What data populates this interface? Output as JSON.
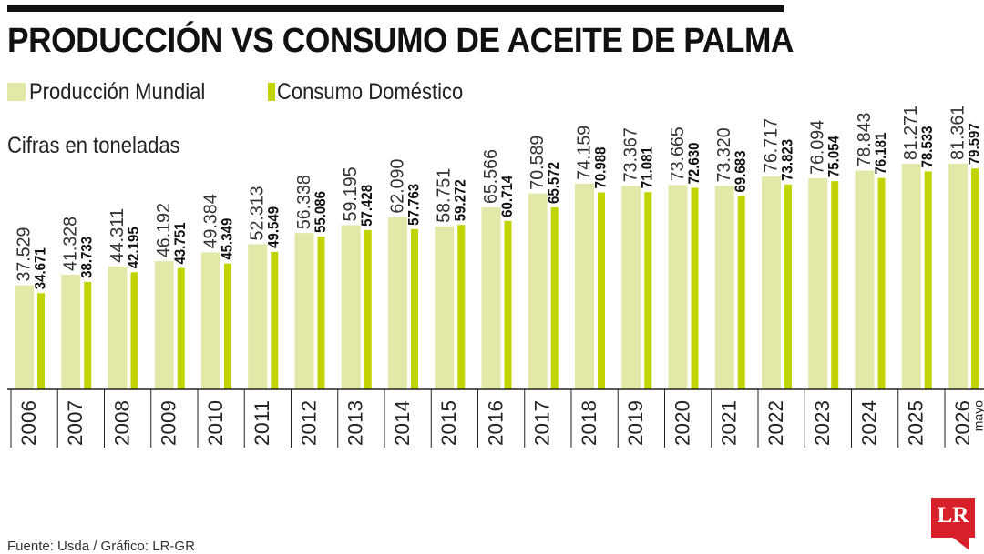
{
  "title": "PRODUCCIÓN VS CONSUMO DE ACEITE DE PALMA",
  "legend": {
    "production_label": "Producción Mundial",
    "consumption_label": "Consumo Doméstico"
  },
  "subtitle": "Cifras en toneladas",
  "source": "Fuente: Usda / Gráfico: LR-GR",
  "logo_text": "LR",
  "colors": {
    "production": "#e3e8a8",
    "consumption": "#c2d400",
    "title": "#111111",
    "logo": "#d8202a"
  },
  "chart_data": {
    "type": "bar",
    "categories": [
      "2006",
      "2007",
      "2008",
      "2009",
      "2010",
      "2011",
      "2012",
      "2013",
      "2014",
      "2015",
      "2016",
      "2017",
      "2018",
      "2019",
      "2020",
      "2021",
      "2022",
      "2023",
      "2024",
      "2025",
      "2026"
    ],
    "category_notes": {
      "2026": "mayo"
    },
    "series": [
      {
        "name": "Producción Mundial",
        "values": [
          37.529,
          41.328,
          44.311,
          46.192,
          49.384,
          52.313,
          56.338,
          59.195,
          62.09,
          58.751,
          65.566,
          70.589,
          74.159,
          73.367,
          73.665,
          73.32,
          76.717,
          76.094,
          78.843,
          81.271,
          81.361
        ],
        "labels": [
          "37.529",
          "41.328",
          "44.311",
          "46.192",
          "49.384",
          "52.313",
          "56.338",
          "59.195",
          "62.090",
          "58.751",
          "65.566",
          "70.589",
          "74.159",
          "73.367",
          "73.665",
          "73.320",
          "76.717",
          "76.094",
          "78.843",
          "81.271",
          "81.361"
        ]
      },
      {
        "name": "Consumo Doméstico",
        "values": [
          34.671,
          38.733,
          42.195,
          43.751,
          45.349,
          49.549,
          55.086,
          57.428,
          57.763,
          59.272,
          60.714,
          65.572,
          70.988,
          71.081,
          72.63,
          69.683,
          73.823,
          75.054,
          76.181,
          78.533,
          79.597
        ],
        "labels": [
          "34.671",
          "38.733",
          "42.195",
          "43.751",
          "45.349",
          "49.549",
          "55.086",
          "57.428",
          "57.763",
          "59.272",
          "60.714",
          "65.572",
          "70.988",
          "71.081",
          "72.630",
          "69.683",
          "73.823",
          "75.054",
          "76.181",
          "78.533",
          "79.597"
        ]
      }
    ],
    "grid": false,
    "legend_position": "top-left"
  }
}
